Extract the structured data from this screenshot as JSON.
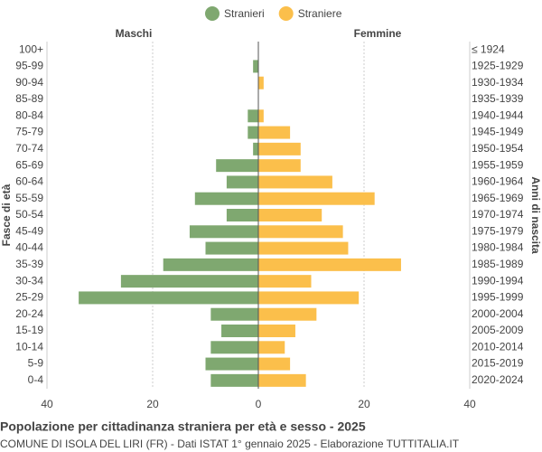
{
  "chart_data": {
    "type": "pyramid",
    "title": "Popolazione per cittadinanza straniera per età e sesso - 2025",
    "subtitle": "COMUNE DI ISOLA DEL LIRI (FR) - Dati ISTAT 1° gennaio 2025 - Elaborazione TUTTITALIA.IT",
    "left_header": "Maschi",
    "right_header": "Femmine",
    "y_label": "Fasce di età",
    "y2_label": "Anni di nascita",
    "categories": [
      "100+",
      "95-99",
      "90-94",
      "85-89",
      "80-84",
      "75-79",
      "70-74",
      "65-69",
      "60-64",
      "55-59",
      "50-54",
      "45-49",
      "40-44",
      "35-39",
      "30-34",
      "25-29",
      "20-24",
      "15-19",
      "10-14",
      "5-9",
      "0-4"
    ],
    "birth_years": [
      "≤ 1924",
      "1925-1929",
      "1930-1934",
      "1935-1939",
      "1940-1944",
      "1945-1949",
      "1950-1954",
      "1955-1959",
      "1960-1964",
      "1965-1969",
      "1970-1974",
      "1975-1979",
      "1980-1984",
      "1985-1989",
      "1990-1994",
      "1995-1999",
      "2000-2004",
      "2005-2009",
      "2010-2014",
      "2015-2019",
      "2020-2024"
    ],
    "series": [
      {
        "name": "Stranieri",
        "color": "#7fa870",
        "side": "left",
        "values": [
          0,
          1,
          0,
          0,
          2,
          2,
          1,
          8,
          6,
          12,
          6,
          13,
          10,
          18,
          26,
          34,
          9,
          7,
          9,
          10,
          9
        ]
      },
      {
        "name": "Straniere",
        "color": "#fbbf4b",
        "side": "right",
        "values": [
          0,
          0,
          1,
          0,
          1,
          6,
          8,
          8,
          14,
          22,
          12,
          16,
          17,
          27,
          10,
          19,
          11,
          7,
          5,
          6,
          9
        ]
      }
    ],
    "xlim": [
      -40,
      40
    ],
    "xticks": [
      {
        "value": -40,
        "label": "40"
      },
      {
        "value": -20,
        "label": "20"
      },
      0,
      20,
      40
    ],
    "grid": true
  }
}
